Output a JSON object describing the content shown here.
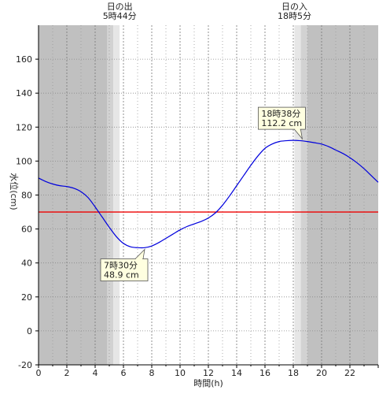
{
  "chart_data": {
    "type": "line",
    "title": "",
    "xlabel": "時間(h)",
    "ylabel": "水位(cm)",
    "xlim": [
      0,
      24
    ],
    "ylim": [
      -20,
      180
    ],
    "x_ticks": [
      0,
      2,
      4,
      6,
      8,
      10,
      12,
      14,
      16,
      18,
      20,
      22
    ],
    "x_tick_labels": [
      "0",
      "2",
      "4",
      "6",
      "8",
      "10",
      "12",
      "14",
      "16",
      "18",
      "20",
      "22"
    ],
    "y_ticks": [
      -20,
      0,
      20,
      40,
      60,
      80,
      100,
      120,
      140,
      160
    ],
    "y_tick_labels": [
      "-20",
      "0",
      "20",
      "40",
      "60",
      "80",
      "100",
      "120",
      "140",
      "160"
    ],
    "grid": true,
    "series": [
      {
        "color": "#0000dd",
        "x": [
          0,
          0.5,
          1,
          1.5,
          2,
          2.5,
          3,
          3.5,
          4,
          4.5,
          5,
          5.5,
          6,
          6.5,
          7,
          7.5,
          8,
          8.5,
          9,
          9.5,
          10,
          10.5,
          11,
          11.5,
          12,
          12.5,
          13,
          13.5,
          14,
          14.5,
          15,
          15.5,
          16,
          16.5,
          17,
          17.5,
          18,
          18.5,
          19,
          19.5,
          20,
          20.5,
          21,
          21.5,
          22,
          22.5,
          23,
          23.5,
          24
        ],
        "y": [
          90,
          88,
          86.5,
          85.5,
          85,
          84,
          82,
          78.5,
          73,
          67,
          61,
          55.5,
          51.5,
          49.5,
          49,
          49,
          50,
          52,
          54.5,
          57,
          59.5,
          61.5,
          63,
          64.5,
          66.5,
          69.5,
          74,
          79.5,
          85.5,
          91.5,
          97.5,
          103,
          107.5,
          110,
          111.5,
          112,
          112.2,
          112,
          111.5,
          110.8,
          110,
          108.5,
          106.5,
          104.5,
          102,
          99,
          95.5,
          91.5,
          87.5
        ]
      }
    ],
    "reference_line": {
      "y": 70,
      "color": "#ee0000"
    },
    "shading": {
      "night_color": "#c0c0c0",
      "twilight_colors": [
        "#d2d2d2",
        "#e6e6e6"
      ],
      "day_color": "#ffffff",
      "sunrise_hour": 5.733,
      "sunset_hour": 18.083
    },
    "sun_events": [
      {
        "label": "日の出",
        "time": "5時44分",
        "hour": 5.733
      },
      {
        "label": "日の入",
        "time": "18時5分",
        "hour": 18.083
      }
    ],
    "annotations": [
      {
        "time": "18時38分",
        "value": "112.2 cm",
        "x": 18.633,
        "y": 112.2,
        "placement": "above-left"
      },
      {
        "time": "7時30分",
        "value": "48.9 cm",
        "x": 7.5,
        "y": 48.9,
        "placement": "below-left"
      }
    ]
  }
}
